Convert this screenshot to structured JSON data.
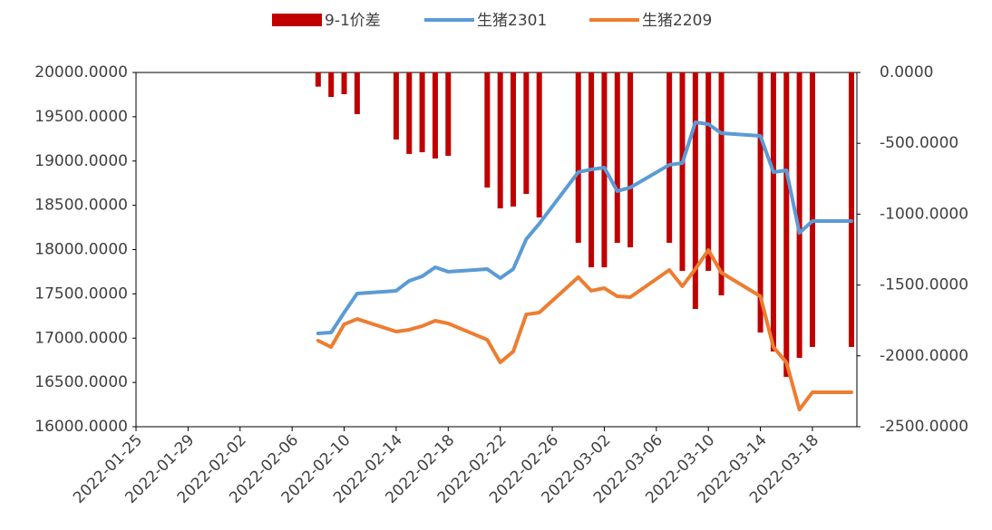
{
  "chart_data": {
    "type": "bar-line",
    "x": [
      "2022-02-08",
      "2022-02-09",
      "2022-02-10",
      "2022-02-11",
      "2022-02-14",
      "2022-02-15",
      "2022-02-16",
      "2022-02-17",
      "2022-02-18",
      "2022-02-21",
      "2022-02-22",
      "2022-02-23",
      "2022-02-24",
      "2022-02-25",
      "2022-02-28",
      "2022-03-01",
      "2022-03-02",
      "2022-03-03",
      "2022-03-04",
      "2022-03-07",
      "2022-03-08",
      "2022-03-09",
      "2022-03-10",
      "2022-03-11",
      "2022-03-14",
      "2022-03-15",
      "2022-03-16",
      "2022-03-17",
      "2022-03-18",
      "2022-03-21"
    ],
    "series": [
      {
        "name": "9-1价差",
        "color": "#c00000",
        "kind": "bar",
        "axis": "y2",
        "values": [
          -100,
          -173,
          -153,
          -294,
          -473,
          -575,
          -563,
          -607,
          -588,
          -812,
          -959,
          -946,
          -857,
          -1023,
          -1202,
          -1375,
          -1375,
          -1202,
          -1234,
          -1202,
          -1400,
          -1669,
          -1400,
          -1573,
          -1835,
          -1969,
          -2148,
          -2014,
          -1937,
          -1937
        ]
      },
      {
        "name": "生猪2301",
        "color": "#5b9bd5",
        "kind": "line",
        "values": [
          17054,
          17064,
          17289,
          17504,
          17535,
          17647,
          17698,
          17801,
          17750,
          17780,
          17678,
          17780,
          18118,
          18292,
          18875,
          18905,
          18926,
          18660,
          18701,
          18957,
          18977,
          19437,
          19417,
          19315,
          19284,
          18875,
          18895,
          18189,
          18322,
          18322
        ]
      },
      {
        "name": "生猪2209",
        "color": "#ed7d31",
        "kind": "line",
        "values": [
          16972,
          16900,
          17156,
          17217,
          17074,
          17095,
          17136,
          17197,
          17166,
          16982,
          16726,
          16849,
          17268,
          17289,
          17688,
          17535,
          17565,
          17473,
          17463,
          17770,
          17586,
          17780,
          17995,
          17739,
          17473,
          16900,
          16726,
          16194,
          16389,
          16389
        ]
      }
    ],
    "xlim": [
      "2022-01-25",
      "2022-03-21"
    ],
    "xticks": [
      "2022-01-25",
      "2022-01-29",
      "2022-02-02",
      "2022-02-06",
      "2022-02-10",
      "2022-02-14",
      "2022-02-18",
      "2022-02-22",
      "2022-02-26",
      "2022-03-02",
      "2022-03-06",
      "2022-03-10",
      "2022-03-14",
      "2022-03-18"
    ],
    "ylim": [
      16000,
      20000
    ],
    "yticks": [
      {
        "value": 16000,
        "label": "16000.0000"
      },
      {
        "value": 16500,
        "label": "16500.0000"
      },
      {
        "value": 17000,
        "label": "17000.0000"
      },
      {
        "value": 17500,
        "label": "17500.0000"
      },
      {
        "value": 18000,
        "label": "18000.0000"
      },
      {
        "value": 18500,
        "label": "18500.0000"
      },
      {
        "value": 19000,
        "label": "19000.0000"
      },
      {
        "value": 19500,
        "label": "19500.0000"
      },
      {
        "value": 20000,
        "label": "20000.0000"
      }
    ],
    "y2lim": [
      -2500,
      0
    ],
    "y2ticks": [
      {
        "value": -2500,
        "label": "-2500.0000"
      },
      {
        "value": -2000,
        "label": "-2000.0000"
      },
      {
        "value": -1500,
        "label": "-1500.0000"
      },
      {
        "value": -1000,
        "label": "-1000.0000"
      },
      {
        "value": -500,
        "label": "-500.0000"
      },
      {
        "value": 0,
        "label": "0.0000"
      }
    ],
    "legend": "top"
  }
}
